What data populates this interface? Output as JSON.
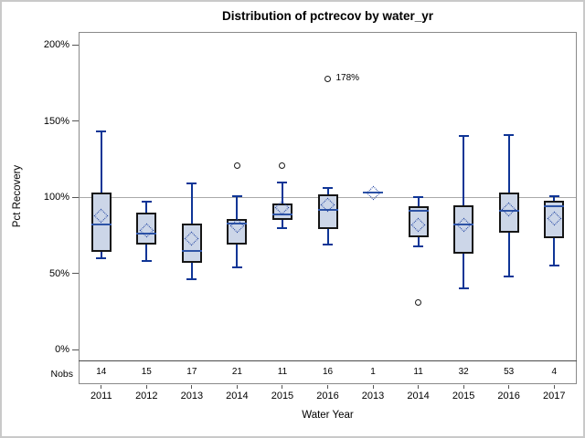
{
  "title": "Distribution of pctrecov by water_yr",
  "axes": {
    "y_label": "Pct Recovery",
    "x_label": "Water Year",
    "nobs_row_label": "Nobs"
  },
  "chart_data": {
    "type": "box",
    "title": "Distribution of pctrecov by water_yr",
    "xlabel": "Water Year",
    "ylabel": "Pct Recovery",
    "y_ticks": [
      0,
      50,
      100,
      150,
      200
    ],
    "y_tick_suffix": "%",
    "ylim": [
      -7,
      209
    ],
    "grid": false,
    "reference_line_y": 100,
    "categories": [
      "2011",
      "2012",
      "2013",
      "2014",
      "2015",
      "2016",
      "2013",
      "2014",
      "2015",
      "2016",
      "2017"
    ],
    "nobs": [
      14,
      15,
      17,
      21,
      11,
      16,
      1,
      11,
      32,
      53,
      4
    ],
    "boxes": [
      {
        "category": "2011",
        "nobs": 14,
        "low": 60,
        "q1": 64,
        "median": 82,
        "q3": 103,
        "high": 143,
        "mean": 88,
        "outliers": [],
        "outlier_labels": []
      },
      {
        "category": "2012",
        "nobs": 15,
        "low": 58,
        "q1": 69,
        "median": 76,
        "q3": 90,
        "high": 97,
        "mean": 78,
        "outliers": [],
        "outlier_labels": []
      },
      {
        "category": "2013",
        "nobs": 17,
        "low": 46,
        "q1": 57,
        "median": 65,
        "q3": 83,
        "high": 109,
        "mean": 73,
        "outliers": [],
        "outlier_labels": []
      },
      {
        "category": "2014",
        "nobs": 21,
        "low": 54,
        "q1": 69,
        "median": 83,
        "q3": 86,
        "high": 101,
        "mean": 81,
        "outliers": [
          121
        ],
        "outlier_labels": [
          null
        ]
      },
      {
        "category": "2015",
        "nobs": 11,
        "low": 80,
        "q1": 85,
        "median": 89,
        "q3": 96,
        "high": 110,
        "mean": 93,
        "outliers": [
          121
        ],
        "outlier_labels": [
          null
        ]
      },
      {
        "category": "2016",
        "nobs": 16,
        "low": 69,
        "q1": 79,
        "median": 92,
        "q3": 102,
        "high": 106,
        "mean": 95,
        "outliers": [
          178
        ],
        "outlier_labels": [
          "178%"
        ]
      },
      {
        "category": "2013",
        "nobs": 1,
        "low": null,
        "q1": null,
        "median": 103,
        "q3": null,
        "high": null,
        "mean": 103,
        "outliers": [],
        "outlier_labels": []
      },
      {
        "category": "2014",
        "nobs": 11,
        "low": 68,
        "q1": 74,
        "median": 91,
        "q3": 94,
        "high": 100,
        "mean": 82,
        "outliers": [
          31
        ],
        "outlier_labels": [
          null
        ]
      },
      {
        "category": "2015",
        "nobs": 32,
        "low": 40,
        "q1": 63,
        "median": 82,
        "q3": 95,
        "high": 140,
        "mean": 82,
        "outliers": [],
        "outlier_labels": []
      },
      {
        "category": "2016",
        "nobs": 53,
        "low": 48,
        "q1": 77,
        "median": 91,
        "q3": 103,
        "high": 141,
        "mean": 92,
        "outliers": [],
        "outlier_labels": []
      },
      {
        "category": "2017",
        "nobs": 4,
        "low": 55,
        "q1": 73,
        "median": 94,
        "q3": 98,
        "high": 101,
        "mean": 86,
        "outliers": [],
        "outlier_labels": []
      }
    ],
    "colors": {
      "box_fill": "#ccd6e8",
      "box_border": "#161616",
      "whisker": "#0f3596",
      "median": "#2d53a6",
      "mean_marker": "#1c3f9f",
      "reference_line": "#a9a9a9",
      "outlier": "#1a1a1a"
    },
    "legend": null
  }
}
